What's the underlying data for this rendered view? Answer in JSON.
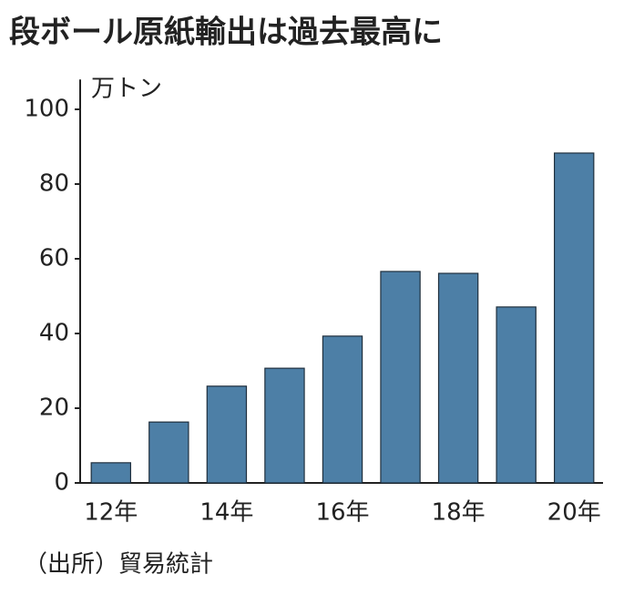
{
  "chart_data": {
    "type": "bar",
    "title": "段ボール原紙輸出は過去最高に",
    "y_label": "万トン",
    "source": "（出所）貿易統計",
    "categories": [
      "12年",
      null,
      "14年",
      null,
      "16年",
      null,
      "18年",
      null,
      "20年"
    ],
    "values": [
      5.4,
      16.3,
      25.9,
      30.7,
      39.3,
      56.6,
      56.1,
      47.1,
      88.3
    ],
    "color": "#4d7fa6",
    "ylim": [
      0,
      108
    ],
    "yticks": [
      0,
      20,
      40,
      60,
      80,
      100
    ],
    "grid": false
  }
}
